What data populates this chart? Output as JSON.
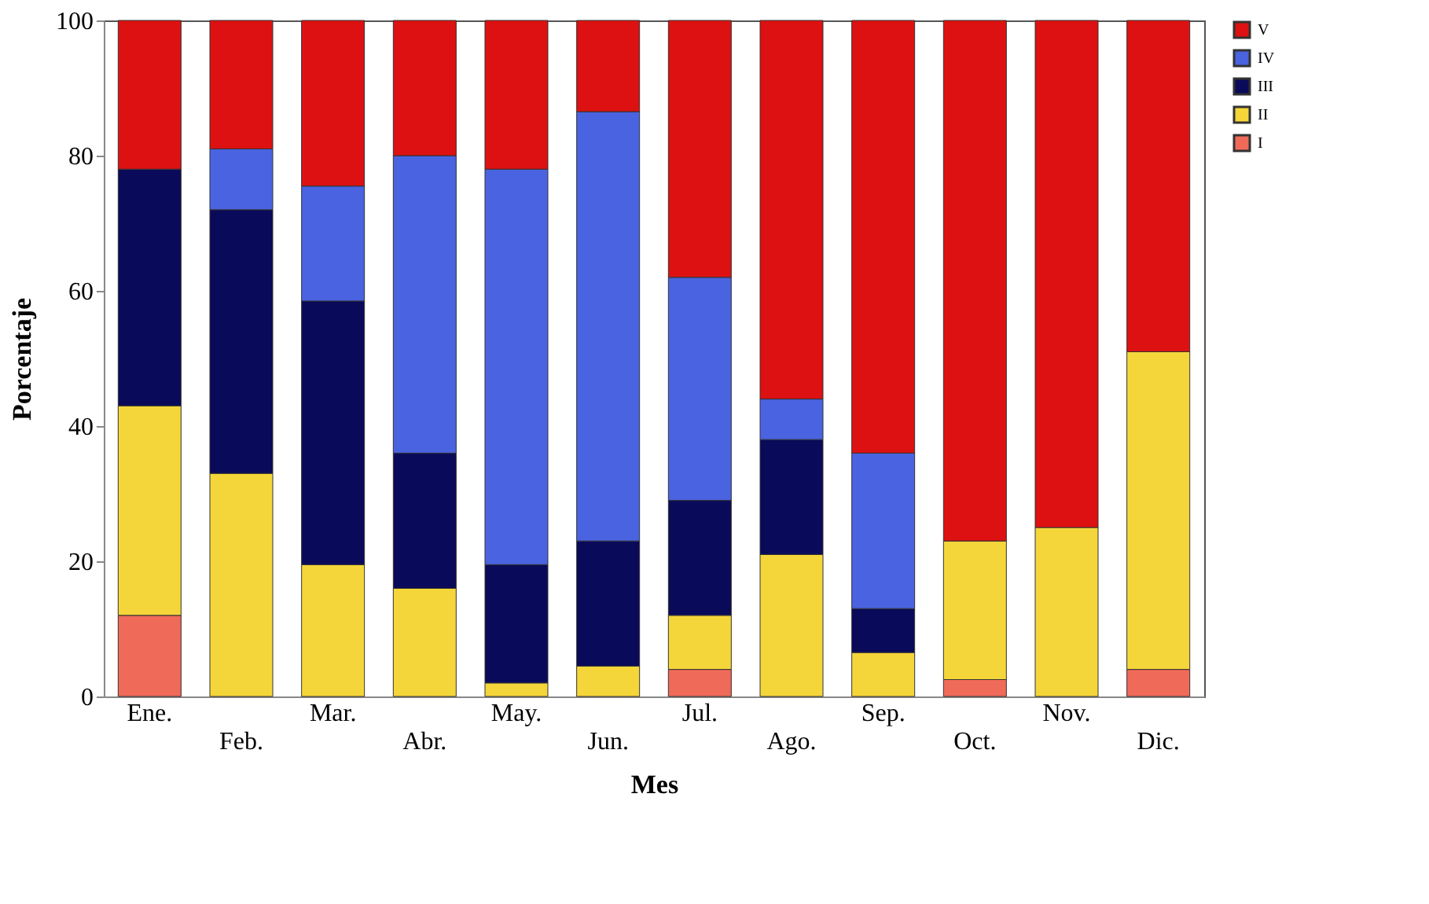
{
  "chart_data": {
    "type": "bar",
    "stacked": true,
    "xlabel": "Mes",
    "ylabel": "Porcentaje",
    "categories": [
      "Ene.",
      "Feb.",
      "Mar.",
      "Abr.",
      "May.",
      "Jun.",
      "Jul.",
      "Ago.",
      "Sep.",
      "Oct.",
      "Nov.",
      "Dic."
    ],
    "series": [
      {
        "name": "I",
        "color": "#f06a5a",
        "values": [
          12,
          null,
          null,
          null,
          null,
          null,
          4,
          null,
          null,
          2.5,
          null,
          4
        ]
      },
      {
        "name": "II",
        "color": "#f5d63a",
        "values": [
          31,
          33,
          19.5,
          16,
          2,
          4.5,
          8,
          21,
          6.5,
          20.5,
          25,
          47
        ]
      },
      {
        "name": "III",
        "color": "#0a0a5a",
        "values": [
          35,
          39,
          39,
          20,
          17.5,
          18.5,
          17,
          17,
          6.5,
          null,
          null,
          null
        ]
      },
      {
        "name": "IV",
        "color": "#4a63e0",
        "values": [
          null,
          9,
          17,
          44,
          58.5,
          63.5,
          33,
          6,
          23,
          null,
          null,
          null
        ]
      },
      {
        "name": "V",
        "color": "#dd1111",
        "values": [
          22,
          19,
          24.5,
          20,
          22,
          13.5,
          38,
          56,
          64,
          77,
          75,
          49
        ]
      }
    ],
    "ylim": [
      0,
      100
    ],
    "yticks": [
      0,
      20,
      40,
      60,
      80,
      100
    ],
    "grid": false,
    "legend": "right"
  }
}
